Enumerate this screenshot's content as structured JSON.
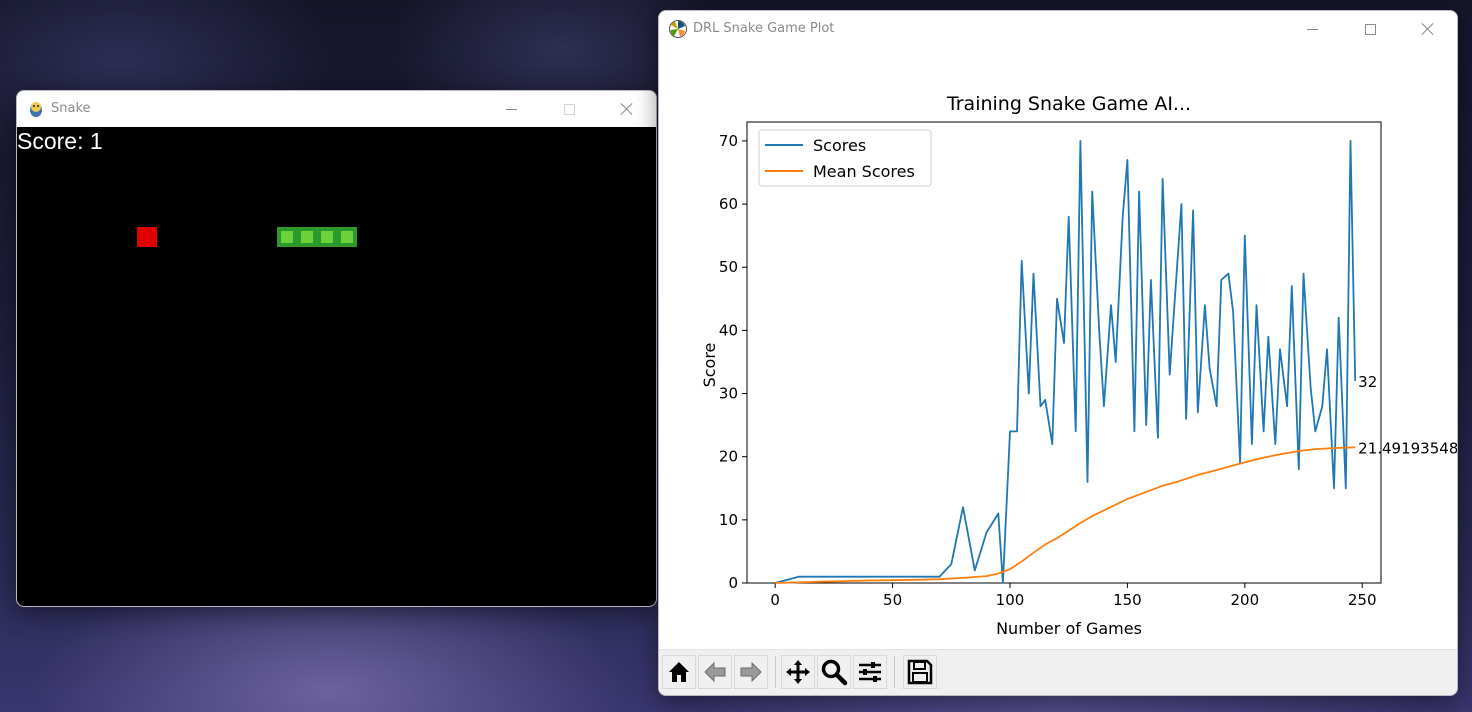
{
  "snake_window": {
    "title": "Snake",
    "score_text": "Score: 1",
    "background_color": "#000000",
    "food_color": "#e00000",
    "snake_head_color": "#6cd13b",
    "snake_body_color": "#2a9a2a"
  },
  "plot_window": {
    "title": "DRL Snake Game Plot",
    "toolbar": [
      {
        "name": "home-icon",
        "label": "Home"
      },
      {
        "name": "back-arrow-icon",
        "label": "Back"
      },
      {
        "name": "forward-arrow-icon",
        "label": "Forward"
      },
      {
        "name": "pan-icon",
        "label": "Pan"
      },
      {
        "name": "zoom-icon",
        "label": "Zoom"
      },
      {
        "name": "configure-subplots-icon",
        "label": "Configure subplots"
      },
      {
        "name": "save-icon",
        "label": "Save"
      }
    ]
  },
  "chart_data": {
    "type": "line",
    "title": "Training Snake Game AI...",
    "xlabel": "Number of Games",
    "ylabel": "Score",
    "xlim": [
      -12,
      258
    ],
    "ylim": [
      0,
      73
    ],
    "xticks": [
      "0",
      "50",
      "100",
      "150",
      "200",
      "250"
    ],
    "yticks": [
      "0",
      "10",
      "20",
      "30",
      "40",
      "50",
      "60",
      "70"
    ],
    "legend_position": "top-left",
    "grid": false,
    "series": [
      {
        "name": "Scores",
        "color": "#1f77b4",
        "x": [
          0,
          10,
          20,
          30,
          40,
          50,
          60,
          70,
          75,
          80,
          85,
          90,
          95,
          97,
          100,
          103,
          105,
          108,
          110,
          113,
          115,
          118,
          120,
          123,
          125,
          128,
          130,
          133,
          135,
          138,
          140,
          143,
          145,
          148,
          150,
          153,
          155,
          158,
          160,
          163,
          165,
          168,
          170,
          173,
          175,
          178,
          180,
          183,
          185,
          188,
          190,
          193,
          195,
          198,
          200,
          203,
          205,
          208,
          210,
          213,
          215,
          218,
          220,
          223,
          225,
          228,
          230,
          233,
          235,
          238,
          240,
          243,
          245,
          247
        ],
        "y": [
          0,
          1,
          1,
          1,
          1,
          1,
          1,
          1,
          3,
          12,
          2,
          8,
          11,
          0,
          24,
          24,
          51,
          30,
          49,
          28,
          29,
          22,
          45,
          38,
          58,
          24,
          70,
          16,
          62,
          40,
          28,
          44,
          35,
          58,
          67,
          24,
          62,
          25,
          48,
          23,
          64,
          33,
          44,
          60,
          26,
          59,
          27,
          44,
          34,
          28,
          48,
          49,
          43,
          19,
          55,
          22,
          44,
          24,
          39,
          22,
          37,
          28,
          47,
          18,
          49,
          31,
          24,
          28,
          37,
          15,
          42,
          15,
          70,
          32
        ]
      },
      {
        "name": "Mean Scores",
        "color": "#ff7f0e",
        "x": [
          0,
          20,
          40,
          60,
          70,
          80,
          90,
          95,
          100,
          105,
          110,
          115,
          120,
          125,
          130,
          135,
          140,
          145,
          150,
          155,
          160,
          165,
          170,
          175,
          180,
          185,
          190,
          195,
          200,
          205,
          210,
          215,
          220,
          225,
          230,
          235,
          240,
          245,
          247
        ],
        "y": [
          0,
          0.2,
          0.4,
          0.5,
          0.6,
          0.8,
          1.1,
          1.5,
          2.2,
          3.4,
          4.8,
          6.1,
          7.1,
          8.3,
          9.5,
          10.6,
          11.5,
          12.4,
          13.3,
          14.0,
          14.7,
          15.4,
          15.9,
          16.5,
          17.1,
          17.6,
          18.1,
          18.6,
          19.1,
          19.6,
          20.0,
          20.4,
          20.7,
          21.0,
          21.2,
          21.3,
          21.4,
          21.45,
          21.49193548
        ]
      }
    ],
    "annotations": [
      {
        "text": "32",
        "x": 247,
        "y": 32
      },
      {
        "text": "21.49193548",
        "x": 247,
        "y": 21.49193548
      }
    ]
  }
}
